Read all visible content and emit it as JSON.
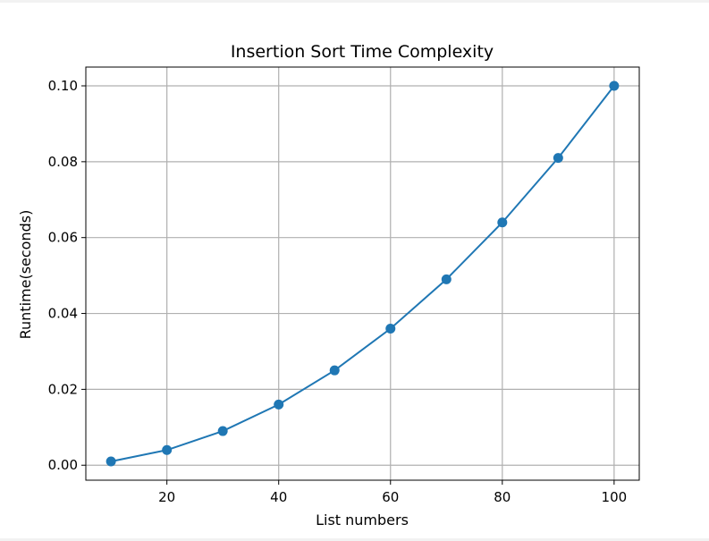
{
  "chart_data": {
    "type": "line",
    "title": "Insertion Sort Time Complexity",
    "xlabel": "List numbers",
    "ylabel": "Runtime(seconds)",
    "x": [
      10,
      20,
      30,
      40,
      50,
      60,
      70,
      80,
      90,
      100
    ],
    "series": [
      {
        "values": [
          0.001,
          0.004,
          0.009,
          0.016,
          0.025,
          0.036,
          0.049,
          0.064,
          0.081,
          0.1
        ]
      }
    ],
    "xlim": [
      5.5,
      104.5
    ],
    "ylim": [
      -0.00395,
      0.10495
    ],
    "xticks": [
      20,
      40,
      60,
      80,
      100
    ],
    "xtick_labels": [
      "20",
      "40",
      "60",
      "80",
      "100"
    ],
    "yticks": [
      0.0,
      0.02,
      0.04,
      0.06,
      0.08,
      0.1
    ],
    "ytick_labels": [
      "0.00",
      "0.02",
      "0.04",
      "0.06",
      "0.08",
      "0.10"
    ],
    "grid": true,
    "marker": "circle",
    "colors": {
      "line": "#1f77b4",
      "grid": "#b0b0b0",
      "figure_bg": "#ffffff",
      "page_bg": "#f2f2f2"
    }
  }
}
